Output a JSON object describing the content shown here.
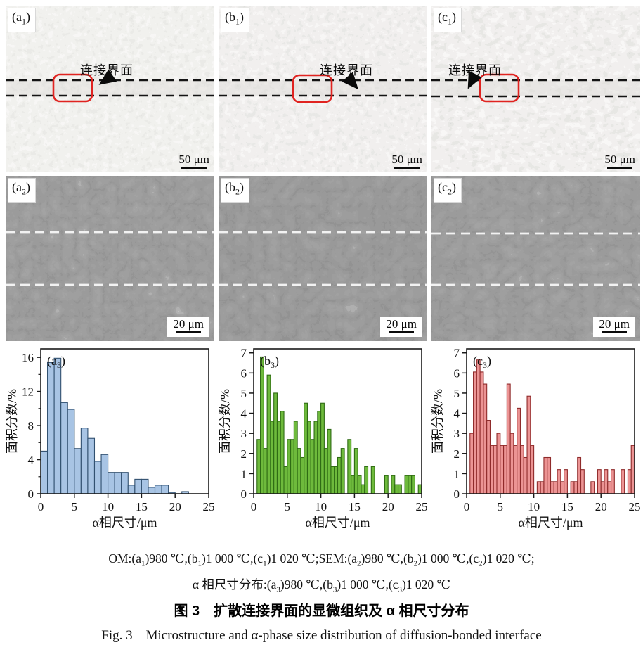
{
  "figure": {
    "title_zh": "图 3　扩散连接界面的显微组织及 α 相尺寸分布",
    "title_en": "Fig. 3　Microstructure and α-phase size distribution of diffusion-bonded interface"
  },
  "captions": {
    "line1": [
      {
        "t": "OM:(a"
      },
      {
        "sub": "1"
      },
      {
        "t": ")980 ℃,(b"
      },
      {
        "sub": "1"
      },
      {
        "t": ")1 000 ℃,(c"
      },
      {
        "sub": "1"
      },
      {
        "t": ")1 020 ℃;SEM:(a"
      },
      {
        "sub": "2"
      },
      {
        "t": ")980 ℃,(b"
      },
      {
        "sub": "2"
      },
      {
        "t": ")1 000 ℃,(c"
      },
      {
        "sub": "2"
      },
      {
        "t": ")1 020 ℃;"
      }
    ],
    "line2": [
      {
        "t": "α 相尺寸分布:(a"
      },
      {
        "sub": "3"
      },
      {
        "t": ")980 ℃,(b"
      },
      {
        "sub": "3"
      },
      {
        "t": ")1 000 ℃,(c"
      },
      {
        "sub": "3"
      },
      {
        "t": ")1 020 ℃"
      }
    ]
  },
  "om_panels": [
    {
      "label_pre": "(a",
      "label_sub": "1",
      "label_post": ")",
      "annotation": "连接界面",
      "scale_label": "50 μm"
    },
    {
      "label_pre": "(b",
      "label_sub": "1",
      "label_post": ")",
      "annotation": "连接界面",
      "scale_label": "50 μm"
    },
    {
      "label_pre": "(c",
      "label_sub": "1",
      "label_post": ")",
      "annotation": "连接界面",
      "scale_label": "50 μm"
    }
  ],
  "sem_panels": [
    {
      "label_pre": "(a",
      "label_sub": "2",
      "label_post": ")",
      "scale_label": "20 μm"
    },
    {
      "label_pre": "(b",
      "label_sub": "2",
      "label_post": ")",
      "scale_label": "20 μm"
    },
    {
      "label_pre": "(c",
      "label_sub": "2",
      "label_post": ")",
      "scale_label": "20 μm"
    }
  ],
  "chart_data": [
    {
      "type": "bar",
      "label_pre": "(a",
      "label_sub": "3",
      "label_post": ")",
      "title": "",
      "xlabel": "α相尺寸/μm",
      "ylabel": "面积分数/%",
      "xlim": [
        0,
        25
      ],
      "ylim": [
        0,
        17
      ],
      "xticks": [
        0,
        5,
        10,
        15,
        20,
        25
      ],
      "yticks": [
        0,
        4,
        8,
        12,
        16
      ],
      "yticks_minor": [
        2,
        6,
        10,
        14
      ],
      "bin_width": 1,
      "color_fill": "#a8c4e4",
      "color_stroke": "#31506f",
      "grid": false,
      "legend": null,
      "bars": [
        [
          0,
          5.0
        ],
        [
          1,
          15.4
        ],
        [
          2,
          15.9
        ],
        [
          3,
          10.7
        ],
        [
          4,
          9.9
        ],
        [
          5,
          5.3
        ],
        [
          6,
          7.7
        ],
        [
          7,
          6.5
        ],
        [
          8,
          3.8
        ],
        [
          9,
          4.6
        ],
        [
          10,
          2.5
        ],
        [
          11,
          2.5
        ],
        [
          12,
          2.5
        ],
        [
          13,
          1.0
        ],
        [
          14,
          1.7
        ],
        [
          15,
          1.7
        ],
        [
          16,
          0.75
        ],
        [
          17,
          1.0
        ],
        [
          18,
          1.0
        ],
        [
          19,
          0.15
        ],
        [
          21,
          0.25
        ]
      ]
    },
    {
      "type": "bar",
      "label_pre": "(b",
      "label_sub": "3",
      "label_post": ")",
      "title": "",
      "xlabel": "α相尺寸/μm",
      "ylabel": "面积分数/%",
      "xlim": [
        0,
        25
      ],
      "ylim": [
        0,
        7.2
      ],
      "xticks": [
        0,
        5,
        10,
        15,
        20,
        25
      ],
      "yticks": [
        0,
        1,
        2,
        3,
        4,
        5,
        6,
        7
      ],
      "yticks_minor": [],
      "bin_width": 0.5,
      "color_fill": "#6eba3c",
      "color_stroke": "#2f6b14",
      "grid": false,
      "legend": null,
      "bars": [
        [
          0.5,
          2.7
        ],
        [
          1,
          6.8
        ],
        [
          1.5,
          2.25
        ],
        [
          2,
          5.9
        ],
        [
          2.5,
          3.6
        ],
        [
          3,
          5.0
        ],
        [
          3.5,
          3.6
        ],
        [
          4,
          4.1
        ],
        [
          4.5,
          1.35
        ],
        [
          5,
          2.7
        ],
        [
          5.5,
          2.7
        ],
        [
          6,
          3.6
        ],
        [
          6.5,
          2.25
        ],
        [
          7,
          1.8
        ],
        [
          7.5,
          4.5
        ],
        [
          8,
          3.6
        ],
        [
          8.5,
          2.7
        ],
        [
          9,
          3.6
        ],
        [
          9.5,
          4.1
        ],
        [
          10,
          4.5
        ],
        [
          10.5,
          2.25
        ],
        [
          11,
          3.2
        ],
        [
          11.5,
          1.35
        ],
        [
          12,
          1.35
        ],
        [
          12.5,
          1.8
        ],
        [
          13,
          2.25
        ],
        [
          14,
          2.7
        ],
        [
          14.5,
          0.9
        ],
        [
          15,
          2.25
        ],
        [
          15.5,
          0.9
        ],
        [
          16,
          0.45
        ],
        [
          16.5,
          1.35
        ],
        [
          17.5,
          1.35
        ],
        [
          19.5,
          0.9
        ],
        [
          20.5,
          0.9
        ],
        [
          21,
          0.45
        ],
        [
          21.5,
          0.45
        ],
        [
          22.5,
          0.9
        ],
        [
          23,
          0.9
        ],
        [
          23.5,
          0.9
        ],
        [
          24.5,
          0.45
        ]
      ]
    },
    {
      "type": "bar",
      "label_pre": "(c",
      "label_sub": "3",
      "label_post": ")",
      "title": "",
      "xlabel": "α相尺寸/μm",
      "ylabel": "面积分数/%",
      "xlim": [
        0,
        25
      ],
      "ylim": [
        0,
        7.2
      ],
      "xticks": [
        0,
        5,
        10,
        15,
        20,
        25
      ],
      "yticks": [
        0,
        1,
        2,
        3,
        4,
        5,
        6,
        7
      ],
      "yticks_minor": [],
      "bin_width": 0.5,
      "color_fill": "#ec9494",
      "color_stroke": "#8f2b2b",
      "grid": false,
      "legend": null,
      "bars": [
        [
          0.5,
          3.0
        ],
        [
          1,
          6.05
        ],
        [
          1.5,
          6.65
        ],
        [
          2,
          6.05
        ],
        [
          2.5,
          5.45
        ],
        [
          3,
          3.65
        ],
        [
          3.5,
          2.4
        ],
        [
          4,
          2.4
        ],
        [
          4.5,
          3.0
        ],
        [
          5,
          2.4
        ],
        [
          5.5,
          2.4
        ],
        [
          6,
          5.45
        ],
        [
          6.5,
          3.0
        ],
        [
          7,
          2.4
        ],
        [
          7.5,
          4.25
        ],
        [
          8,
          2.4
        ],
        [
          8.5,
          1.8
        ],
        [
          9,
          4.85
        ],
        [
          9.5,
          2.4
        ],
        [
          10.5,
          0.6
        ],
        [
          11,
          0.6
        ],
        [
          11.5,
          1.8
        ],
        [
          12,
          1.8
        ],
        [
          12.5,
          0.6
        ],
        [
          13,
          0.6
        ],
        [
          13.5,
          1.2
        ],
        [
          14,
          0.6
        ],
        [
          14.5,
          1.2
        ],
        [
          15.5,
          0.6
        ],
        [
          16,
          0.6
        ],
        [
          16.5,
          1.8
        ],
        [
          17,
          1.2
        ],
        [
          18.5,
          0.6
        ],
        [
          19.5,
          1.2
        ],
        [
          20,
          0.6
        ],
        [
          20.5,
          1.2
        ],
        [
          21,
          0.6
        ],
        [
          21.5,
          1.2
        ],
        [
          23,
          1.2
        ],
        [
          24,
          1.2
        ],
        [
          24.5,
          2.4
        ]
      ]
    }
  ],
  "colors": {
    "red_box": "#e02320",
    "dash_om": "#141414",
    "dash_sem": "#f2f2f2"
  }
}
